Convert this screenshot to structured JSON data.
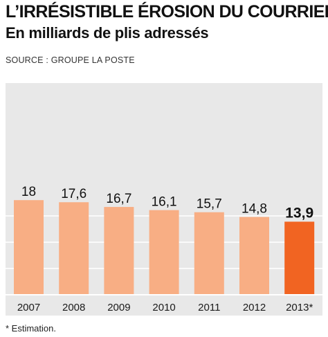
{
  "title": "L’IRRÉSISTIBLE ÉROSION DU COURRIER",
  "subtitle": "En milliards de plis adressés",
  "source": "SOURCE : GROUPE LA POSTE",
  "footnote": "* Estimation.",
  "colors": {
    "bar": "#f8ae84",
    "highlight": "#f16422",
    "panel": "#e8e8e8",
    "grid": "#ffffff"
  },
  "chart_data": {
    "type": "bar",
    "categories": [
      "2007",
      "2008",
      "2009",
      "2010",
      "2011",
      "2012",
      "2013*"
    ],
    "values": [
      18,
      17.6,
      16.7,
      16.1,
      15.7,
      14.8,
      13.9
    ],
    "value_labels": [
      "18",
      "17,6",
      "16,7",
      "16,1",
      "15,7",
      "14,8",
      "13,9"
    ],
    "highlight_index": 6,
    "ylim": [
      0,
      20
    ],
    "grid_values": [
      5,
      10,
      15
    ],
    "grid": true,
    "xlabel": "",
    "ylabel": ""
  }
}
